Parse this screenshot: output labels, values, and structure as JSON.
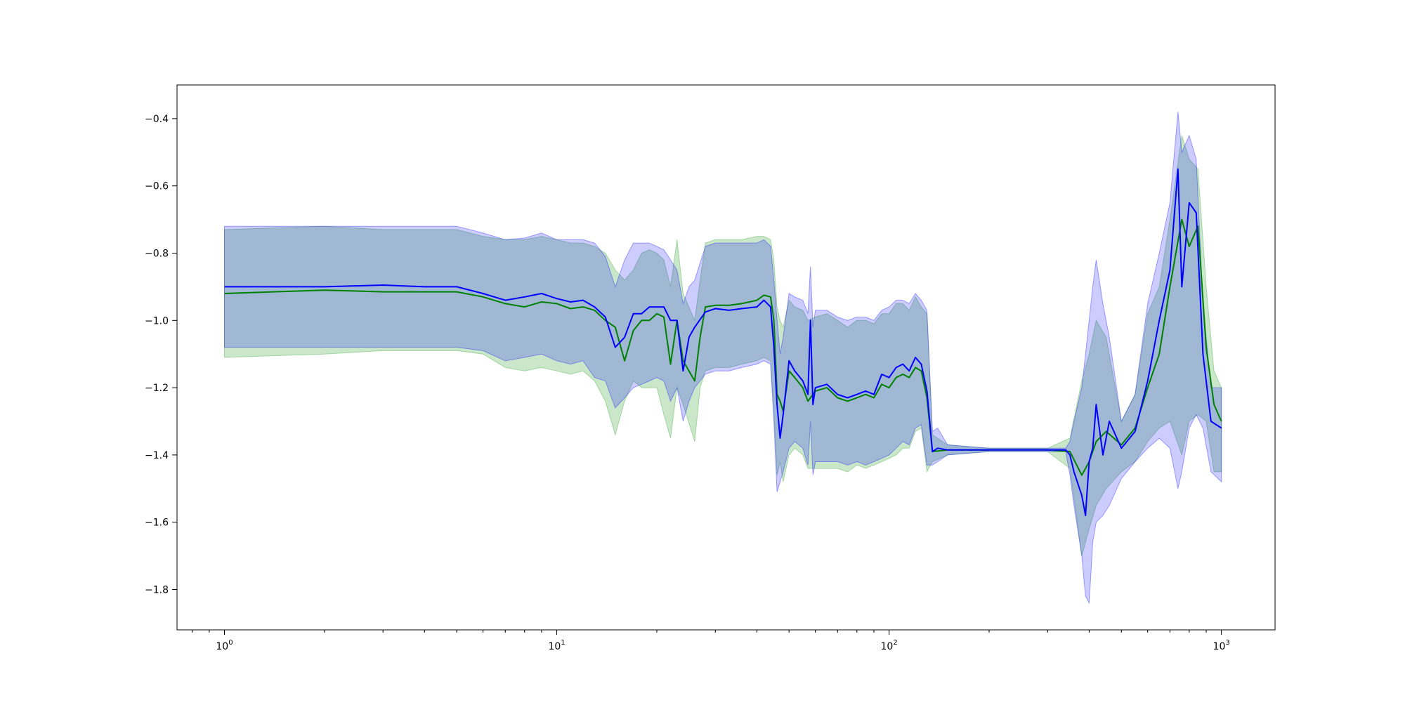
{
  "chart_data": {
    "type": "line",
    "title": "",
    "xlabel": "",
    "ylabel": "",
    "x_scale": "log",
    "xlim": [
      0.72,
      1450
    ],
    "ylim": [
      -1.92,
      -0.3
    ],
    "grid": false,
    "legend": "none",
    "x_ticks": [
      {
        "value": 1,
        "base": "10",
        "exp": "0"
      },
      {
        "value": 10,
        "base": "10",
        "exp": "1"
      },
      {
        "value": 100,
        "base": "10",
        "exp": "2"
      },
      {
        "value": 1000,
        "base": "10",
        "exp": "3"
      }
    ],
    "y_ticks": [
      {
        "value": -0.4,
        "label": "−0.4"
      },
      {
        "value": -0.6,
        "label": "−0.6"
      },
      {
        "value": -0.8,
        "label": "−0.8"
      },
      {
        "value": -1.0,
        "label": "−1.0"
      },
      {
        "value": -1.2,
        "label": "−1.2"
      },
      {
        "value": -1.4,
        "label": "−1.4"
      },
      {
        "value": -1.6,
        "label": "−1.6"
      },
      {
        "value": -1.8,
        "label": "−1.8"
      }
    ],
    "series": [
      {
        "color": "#008000",
        "band_color": "#2ca02c",
        "band_opacity": 0.25,
        "points": [
          [
            1,
            -0.92,
            -1.11,
            -0.73
          ],
          [
            2,
            -0.91,
            -1.1,
            -0.72
          ],
          [
            3,
            -0.915,
            -1.09,
            -0.73
          ],
          [
            5,
            -0.915,
            -1.09,
            -0.73
          ],
          [
            6,
            -0.93,
            -1.1,
            -0.75
          ],
          [
            7,
            -0.95,
            -1.14,
            -0.76
          ],
          [
            8,
            -0.96,
            -1.15,
            -0.76
          ],
          [
            9,
            -0.945,
            -1.14,
            -0.75
          ],
          [
            10,
            -0.95,
            -1.15,
            -0.76
          ],
          [
            11,
            -0.965,
            -1.16,
            -0.77
          ],
          [
            12,
            -0.96,
            -1.15,
            -0.77
          ],
          [
            13,
            -0.97,
            -1.18,
            -0.78
          ],
          [
            14,
            -1.0,
            -1.24,
            -0.8
          ],
          [
            15,
            -1.02,
            -1.34,
            -0.85
          ],
          [
            16,
            -1.12,
            -1.24,
            -0.88
          ],
          [
            17,
            -1.03,
            -1.18,
            -0.85
          ],
          [
            18,
            -1.0,
            -1.2,
            -0.8
          ],
          [
            19,
            -1.0,
            -1.2,
            -0.79
          ],
          [
            20,
            -0.98,
            -1.2,
            -0.8
          ],
          [
            21,
            -0.99,
            -1.28,
            -0.82
          ],
          [
            22,
            -1.13,
            -1.35,
            -0.9
          ],
          [
            23,
            -1.0,
            -1.2,
            -0.76
          ],
          [
            24,
            -1.12,
            -1.25,
            -0.92
          ],
          [
            26,
            -1.18,
            -1.36,
            -1.0
          ],
          [
            27,
            -1.05,
            -1.2,
            -0.88
          ],
          [
            28,
            -0.96,
            -1.15,
            -0.77
          ],
          [
            30,
            -0.955,
            -1.14,
            -0.76
          ],
          [
            33,
            -0.955,
            -1.14,
            -0.76
          ],
          [
            36,
            -0.95,
            -1.13,
            -0.76
          ],
          [
            40,
            -0.94,
            -1.12,
            -0.75
          ],
          [
            42,
            -0.925,
            -1.11,
            -0.75
          ],
          [
            44,
            -0.93,
            -1.12,
            -0.76
          ],
          [
            45,
            -1.0,
            -1.26,
            -0.82
          ],
          [
            46,
            -1.22,
            -1.46,
            -0.96
          ],
          [
            47,
            -1.24,
            -1.42,
            -1.0
          ],
          [
            48,
            -1.27,
            -1.48,
            -1.02
          ],
          [
            50,
            -1.15,
            -1.4,
            -0.94
          ],
          [
            52,
            -1.17,
            -1.38,
            -0.96
          ],
          [
            55,
            -1.2,
            -1.4,
            -0.97
          ],
          [
            57,
            -1.24,
            -1.44,
            -1.0
          ],
          [
            60,
            -1.21,
            -1.44,
            -0.99
          ],
          [
            65,
            -1.2,
            -1.44,
            -0.98
          ],
          [
            70,
            -1.23,
            -1.44,
            -1.0
          ],
          [
            75,
            -1.24,
            -1.45,
            -1.02
          ],
          [
            80,
            -1.23,
            -1.43,
            -1.0
          ],
          [
            85,
            -1.22,
            -1.44,
            -1.0
          ],
          [
            90,
            -1.23,
            -1.43,
            -1.01
          ],
          [
            95,
            -1.19,
            -1.42,
            -0.98
          ],
          [
            100,
            -1.2,
            -1.41,
            -0.98
          ],
          [
            105,
            -1.17,
            -1.4,
            -0.95
          ],
          [
            110,
            -1.16,
            -1.38,
            -0.95
          ],
          [
            115,
            -1.17,
            -1.38,
            -0.97
          ],
          [
            120,
            -1.14,
            -1.33,
            -0.93
          ],
          [
            125,
            -1.15,
            -1.32,
            -0.96
          ],
          [
            130,
            -1.23,
            -1.45,
            -0.98
          ],
          [
            135,
            -1.39,
            -1.42,
            -1.34
          ],
          [
            150,
            -1.385,
            -1.4,
            -1.37
          ],
          [
            200,
            -1.385,
            -1.39,
            -1.38
          ],
          [
            300,
            -1.385,
            -1.39,
            -1.38
          ],
          [
            350,
            -1.39,
            -1.44,
            -1.35
          ],
          [
            380,
            -1.46,
            -1.7,
            -1.18
          ],
          [
            400,
            -1.42,
            -1.62,
            -1.1
          ],
          [
            420,
            -1.36,
            -1.55,
            -1.0
          ],
          [
            450,
            -1.33,
            -1.5,
            -1.05
          ],
          [
            500,
            -1.37,
            -1.45,
            -1.3
          ],
          [
            550,
            -1.32,
            -1.42,
            -1.22
          ],
          [
            600,
            -1.2,
            -1.36,
            -0.98
          ],
          [
            650,
            -1.1,
            -1.32,
            -0.9
          ],
          [
            700,
            -0.9,
            -1.3,
            -0.7
          ],
          [
            760,
            -0.7,
            -1.4,
            -0.45
          ],
          [
            800,
            -0.78,
            -1.3,
            -0.52
          ],
          [
            850,
            -0.72,
            -1.28,
            -0.55
          ],
          [
            900,
            -1.08,
            -1.3,
            -0.9
          ],
          [
            950,
            -1.25,
            -1.45,
            -1.15
          ],
          [
            1000,
            -1.3,
            -1.45,
            -1.2
          ]
        ]
      },
      {
        "color": "#0000ff",
        "band_color": "#0000ff",
        "band_opacity": 0.2,
        "points": [
          [
            1,
            -0.9,
            -1.08,
            -0.72
          ],
          [
            2,
            -0.9,
            -1.08,
            -0.72
          ],
          [
            3,
            -0.895,
            -1.08,
            -0.72
          ],
          [
            4,
            -0.9,
            -1.08,
            -0.72
          ],
          [
            5,
            -0.9,
            -1.08,
            -0.72
          ],
          [
            6,
            -0.92,
            -1.09,
            -0.74
          ],
          [
            7,
            -0.94,
            -1.12,
            -0.76
          ],
          [
            8,
            -0.93,
            -1.11,
            -0.755
          ],
          [
            9,
            -0.92,
            -1.1,
            -0.74
          ],
          [
            10,
            -0.935,
            -1.12,
            -0.76
          ],
          [
            11,
            -0.945,
            -1.13,
            -0.76
          ],
          [
            12,
            -0.94,
            -1.12,
            -0.76
          ],
          [
            13,
            -0.96,
            -1.17,
            -0.77
          ],
          [
            14,
            -0.99,
            -1.18,
            -0.81
          ],
          [
            15,
            -1.08,
            -1.26,
            -0.9
          ],
          [
            16,
            -1.05,
            -1.23,
            -0.82
          ],
          [
            17,
            -0.98,
            -1.2,
            -0.77
          ],
          [
            18,
            -0.98,
            -1.19,
            -0.77
          ],
          [
            19,
            -0.96,
            -1.18,
            -0.77
          ],
          [
            20,
            -0.96,
            -1.17,
            -0.78
          ],
          [
            21,
            -0.96,
            -1.18,
            -0.79
          ],
          [
            22,
            -1.0,
            -1.24,
            -0.82
          ],
          [
            23,
            -1.0,
            -1.2,
            -0.85
          ],
          [
            24,
            -1.15,
            -1.3,
            -0.95
          ],
          [
            25,
            -1.05,
            -1.24,
            -0.9
          ],
          [
            26,
            -1.02,
            -1.2,
            -0.88
          ],
          [
            28,
            -0.975,
            -1.16,
            -0.78
          ],
          [
            30,
            -0.965,
            -1.15,
            -0.77
          ],
          [
            33,
            -0.97,
            -1.15,
            -0.77
          ],
          [
            36,
            -0.965,
            -1.14,
            -0.77
          ],
          [
            40,
            -0.96,
            -1.13,
            -0.77
          ],
          [
            42,
            -0.94,
            -1.12,
            -0.76
          ],
          [
            44,
            -0.96,
            -1.13,
            -0.78
          ],
          [
            45,
            -1.08,
            -1.3,
            -0.88
          ],
          [
            46,
            -1.25,
            -1.51,
            -1.0
          ],
          [
            47,
            -1.35,
            -1.48,
            -1.1
          ],
          [
            48,
            -1.28,
            -1.45,
            -1.05
          ],
          [
            50,
            -1.12,
            -1.38,
            -0.92
          ],
          [
            52,
            -1.15,
            -1.36,
            -0.93
          ],
          [
            55,
            -1.18,
            -1.38,
            -0.94
          ],
          [
            57,
            -1.22,
            -1.43,
            -0.98
          ],
          [
            58,
            -1.0,
            -1.3,
            -0.84
          ],
          [
            59,
            -1.25,
            -1.46,
            -1.02
          ],
          [
            60,
            -1.2,
            -1.42,
            -0.97
          ],
          [
            65,
            -1.19,
            -1.42,
            -0.97
          ],
          [
            70,
            -1.22,
            -1.42,
            -0.99
          ],
          [
            75,
            -1.23,
            -1.43,
            -1.0
          ],
          [
            80,
            -1.22,
            -1.42,
            -0.99
          ],
          [
            85,
            -1.21,
            -1.43,
            -0.99
          ],
          [
            90,
            -1.22,
            -1.42,
            -1.0
          ],
          [
            95,
            -1.16,
            -1.41,
            -0.97
          ],
          [
            100,
            -1.17,
            -1.4,
            -0.96
          ],
          [
            105,
            -1.14,
            -1.38,
            -0.94
          ],
          [
            110,
            -1.13,
            -1.36,
            -0.94
          ],
          [
            115,
            -1.15,
            -1.37,
            -0.95
          ],
          [
            120,
            -1.11,
            -1.32,
            -0.92
          ],
          [
            125,
            -1.13,
            -1.31,
            -0.94
          ],
          [
            130,
            -1.21,
            -1.43,
            -0.97
          ],
          [
            135,
            -1.39,
            -1.43,
            -1.33
          ],
          [
            140,
            -1.38,
            -1.42,
            -1.32
          ],
          [
            150,
            -1.385,
            -1.4,
            -1.37
          ],
          [
            200,
            -1.385,
            -1.39,
            -1.38
          ],
          [
            300,
            -1.385,
            -1.39,
            -1.38
          ],
          [
            340,
            -1.385,
            -1.39,
            -1.38
          ],
          [
            350,
            -1.4,
            -1.46,
            -1.36
          ],
          [
            360,
            -1.45,
            -1.55,
            -1.3
          ],
          [
            380,
            -1.52,
            -1.7,
            -1.2
          ],
          [
            390,
            -1.58,
            -1.82,
            -1.1
          ],
          [
            400,
            -1.42,
            -1.84,
            -1.0
          ],
          [
            410,
            -1.38,
            -1.66,
            -0.9
          ],
          [
            420,
            -1.25,
            -1.6,
            -0.82
          ],
          [
            440,
            -1.4,
            -1.58,
            -0.95
          ],
          [
            460,
            -1.3,
            -1.55,
            -1.05
          ],
          [
            500,
            -1.38,
            -1.47,
            -1.3
          ],
          [
            550,
            -1.33,
            -1.42,
            -1.22
          ],
          [
            600,
            -1.18,
            -1.38,
            -0.95
          ],
          [
            650,
            -1.0,
            -1.35,
            -0.8
          ],
          [
            700,
            -0.85,
            -1.38,
            -0.65
          ],
          [
            740,
            -0.55,
            -1.5,
            -0.38
          ],
          [
            760,
            -0.9,
            -1.45,
            -0.5
          ],
          [
            800,
            -0.65,
            -1.32,
            -0.45
          ],
          [
            840,
            -0.68,
            -1.28,
            -0.52
          ],
          [
            880,
            -1.1,
            -1.32,
            -0.95
          ],
          [
            930,
            -1.3,
            -1.45,
            -1.2
          ],
          [
            1000,
            -1.32,
            -1.48,
            -1.2
          ]
        ]
      }
    ]
  }
}
